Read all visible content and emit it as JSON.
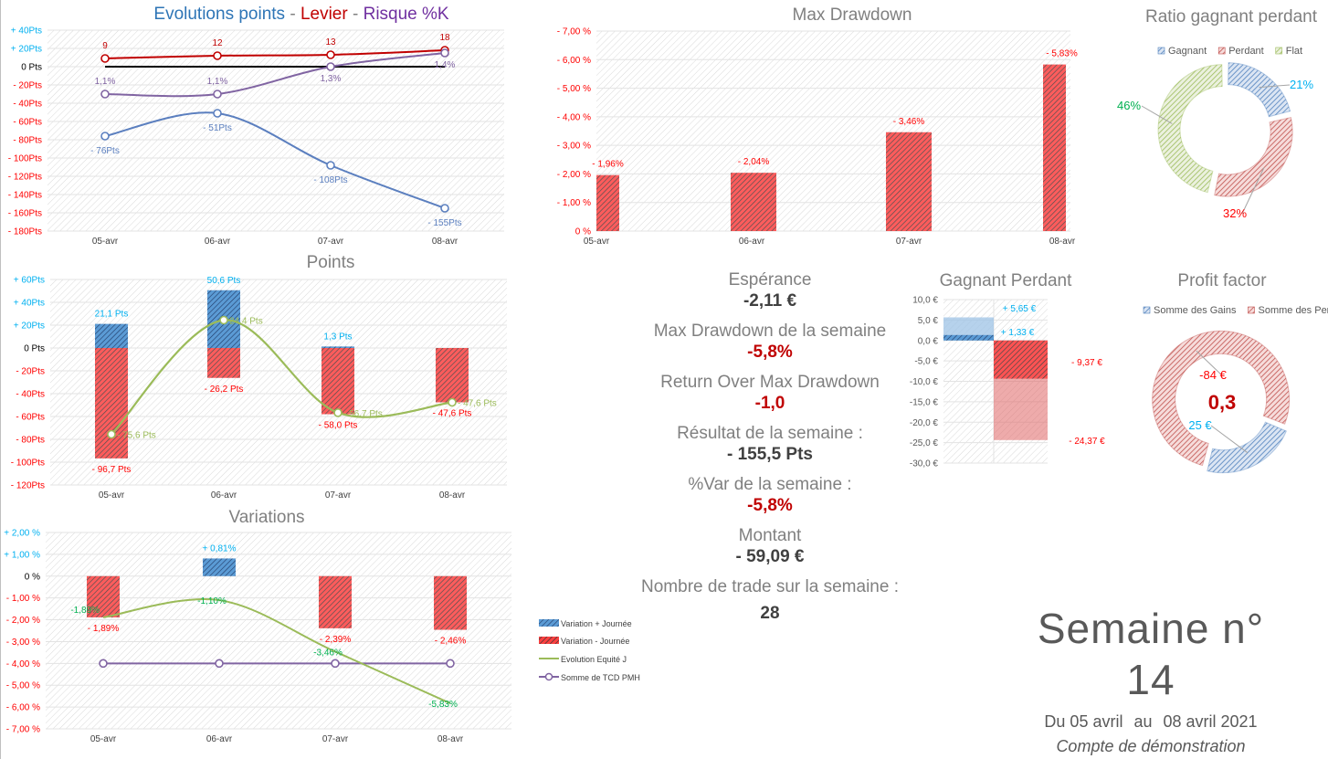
{
  "colors": {
    "blue": "#5b7fbf",
    "red": "#c00000",
    "purple": "#8064a2",
    "green": "#9bbb59",
    "pos_text": "#00b0f0",
    "neg_text": "#ff0000",
    "title_grey": "#808080"
  },
  "chart_data": [
    {
      "id": "evolution",
      "type": "line",
      "title_parts": [
        {
          "text": "Evolutions points",
          "color": "#2e75b6"
        },
        {
          "text": " - ",
          "color": "#808080"
        },
        {
          "text": "Levier",
          "color": "#c00000"
        },
        {
          "text": " - ",
          "color": "#808080"
        },
        {
          "text": "Risque %K",
          "color": "#7030a0"
        }
      ],
      "categories": [
        "05-avr",
        "06-avr",
        "07-avr",
        "08-avr"
      ],
      "ylim": [
        -180,
        40
      ],
      "ytick_values": [
        40,
        20,
        0,
        -20,
        -40,
        -60,
        -80,
        -100,
        -120,
        -140,
        -160,
        -180
      ],
      "ytick_labels": [
        "+ 40Pts",
        "+ 20Pts",
        "0 Pts",
        "- 20Pts",
        "- 40Pts",
        "- 60Pts",
        "- 80Pts",
        "- 100Pts",
        "- 120Pts",
        "- 140Pts",
        "- 160Pts",
        "- 180Pts"
      ],
      "grid": true,
      "series": [
        {
          "key": "points",
          "values": [
            -76,
            -51,
            -108,
            -155
          ],
          "labels": [
            "- 76Pts",
            "- 51Pts",
            "- 108Pts",
            "- 155Pts"
          ],
          "color": "#5b7fbf",
          "axis": "primary"
        },
        {
          "key": "levier",
          "values": [
            9,
            12,
            13,
            18
          ],
          "labels": [
            "9",
            "12",
            "13",
            "18"
          ],
          "color": "#c00000",
          "axis": "primary"
        },
        {
          "key": "risque",
          "values": [
            1.1,
            1.1,
            1.3,
            1.4
          ],
          "labels": [
            "1,1%",
            "1,1%",
            "1,3%",
            "1,4%"
          ],
          "color": "#8064a2",
          "axis": "secondary"
        }
      ]
    },
    {
      "id": "points",
      "type": "bar",
      "title": "Points",
      "categories": [
        "05-avr",
        "06-avr",
        "07-avr",
        "08-avr"
      ],
      "ylim": [
        -120,
        60
      ],
      "ytick_values": [
        60,
        40,
        20,
        0,
        -20,
        -40,
        -60,
        -80,
        -100,
        -120
      ],
      "ytick_labels": [
        "+ 60Pts",
        "+ 40Pts",
        "+ 20Pts",
        "0 Pts",
        "- 20Pts",
        "- 40Pts",
        "- 60Pts",
        "- 80Pts",
        "- 100Pts",
        "- 120Pts"
      ],
      "grid": true,
      "positive": {
        "values": [
          21.1,
          50.6,
          1.3,
          0
        ],
        "labels": [
          "21,1 Pts",
          "50,6 Pts",
          "1,3 Pts",
          ""
        ]
      },
      "negative": {
        "values": [
          -96.7,
          -26.2,
          -58.0,
          -47.6
        ],
        "labels": [
          "- 96,7 Pts",
          "- 26,2 Pts",
          "- 58,0 Pts",
          "- 47,6 Pts"
        ]
      },
      "line": {
        "values": [
          -75.6,
          24.4,
          -56.7,
          -47.6
        ],
        "labels": [
          "- 75,6 Pts",
          "24,4 Pts",
          "- 56,7 Pts",
          "- 47,6 Pts"
        ]
      }
    },
    {
      "id": "variations",
      "type": "bar",
      "title": "Variations",
      "categories": [
        "05-avr",
        "06-avr",
        "07-avr",
        "08-avr"
      ],
      "ylim": [
        -7,
        2
      ],
      "ytick_values": [
        2,
        1,
        0,
        -1,
        -2,
        -3,
        -4,
        -5,
        -6,
        -7
      ],
      "ytick_labels": [
        "+ 2,00 %",
        "+ 1,00 %",
        "0 %",
        "- 1,00 %",
        "- 2,00 %",
        "- 3,00 %",
        "- 4,00 %",
        "- 5,00 %",
        "- 6,00 %",
        "- 7,00 %"
      ],
      "grid": true,
      "positive": {
        "name": "Variation + Journée",
        "values": [
          0,
          0.81,
          0,
          0
        ],
        "labels": [
          "",
          "+ 0,81%",
          "",
          ""
        ]
      },
      "negative": {
        "name": "Variation - Journée",
        "values": [
          -1.89,
          0,
          -2.39,
          -2.46
        ],
        "labels": [
          "- 1,89%",
          "",
          "- 2,39%",
          "- 2,46%"
        ]
      },
      "line": {
        "name": "Evolution  Equité J",
        "values": [
          -1.89,
          -1.1,
          -3.46,
          -5.83
        ],
        "labels": [
          "-1,89%",
          "-1,10%",
          "-3,46%",
          "-5,83%"
        ]
      },
      "line2": {
        "name": "Somme de TCD PMH",
        "values": [
          -4,
          -4,
          -4,
          -4
        ]
      },
      "legend": "right"
    },
    {
      "id": "max_drawdown",
      "type": "bar",
      "title": "Max Drawdown",
      "categories": [
        "05-avr",
        "06-avr",
        "07-avr",
        "08-avr"
      ],
      "ylim": [
        0,
        7
      ],
      "ytick_values": [
        7,
        6,
        5,
        4,
        3,
        2,
        1,
        0
      ],
      "ytick_labels": [
        "- 7,00 %",
        "- 6,00 %",
        "- 5,00 %",
        "- 4,00 %",
        "- 3,00 %",
        "- 2,00 %",
        "- 1,00 %",
        "0 %"
      ],
      "grid": true,
      "values": [
        1.96,
        2.04,
        3.46,
        5.83
      ],
      "labels": [
        "- 1,96%",
        "- 2,04%",
        "- 3,46%",
        "- 5,83%"
      ]
    },
    {
      "id": "ratio",
      "type": "pie",
      "title": "Ratio gagnant perdant",
      "legend": "top",
      "slices": [
        {
          "name": "Gagnant",
          "value": 21,
          "label": "21%",
          "color": "#4f81bd",
          "label_color": "#00b0f0"
        },
        {
          "name": "Perdant",
          "value": 32,
          "label": "32%",
          "color": "#c0504d",
          "label_color": "#ff0000"
        },
        {
          "name": "Flat",
          "value": 46,
          "label": "46%",
          "color": "#9bbb59",
          "label_color": "#00b050"
        }
      ]
    },
    {
      "id": "gagnant_perdant",
      "type": "bar",
      "title": "Gagnant Perdant",
      "ylim": [
        -30,
        10
      ],
      "ytick_values": [
        10,
        5,
        0,
        -5,
        -10,
        -15,
        -20,
        -25,
        -30
      ],
      "ytick_labels": [
        "10,0 €",
        "5,0 €",
        "0,0 €",
        "-5,0 €",
        "-10,0 €",
        "-15,0 €",
        "-20,0 €",
        "-25,0 €",
        "-30,0 €"
      ],
      "grid": true,
      "gain_light": {
        "value": 5.65,
        "label": "+ 5,65 €"
      },
      "gain_dark": {
        "value": 1.33,
        "label": "+ 1,33 €"
      },
      "loss_dark": {
        "value": -9.37,
        "label": "- 9,37 €"
      },
      "loss_light": {
        "value": -24.37,
        "label": "- 24,37 €"
      }
    },
    {
      "id": "profit_factor",
      "type": "pie",
      "title": "Profit factor",
      "legend": "top",
      "center_label": "0,3",
      "slices": [
        {
          "name": "Somme des Gains",
          "value": 25,
          "label": "25 €",
          "color": "#4f81bd",
          "label_color": "#00b0f0"
        },
        {
          "name": "Somme des Pertes",
          "value": 84,
          "label": "-84 €",
          "color": "#c0504d",
          "label_color": "#ff0000"
        }
      ]
    }
  ],
  "stats": [
    {
      "label": "Espérance",
      "value": "-2,11 €",
      "negative": false
    },
    {
      "label": "Max Drawdown de la semaine",
      "value": "-5,8%",
      "negative": true
    },
    {
      "label": "Return Over Max Drawdown",
      "value": "-1,0",
      "negative": true
    },
    {
      "label": "Résultat de la semaine :",
      "value": "- 155,5 Pts",
      "negative": false
    },
    {
      "label": "%Var de la semaine :",
      "value": "-5,8%",
      "negative": true
    },
    {
      "label": "Montant",
      "value": "- 59,09 €",
      "negative": false
    },
    {
      "label": "Nombre de trade sur la semaine :",
      "value": "28",
      "negative": false
    }
  ],
  "week": {
    "title": "Semaine n° 14",
    "from": "Du 05 avril",
    "sep": "au",
    "to": "08 avril 2021",
    "account": "Compte de démonstration"
  }
}
